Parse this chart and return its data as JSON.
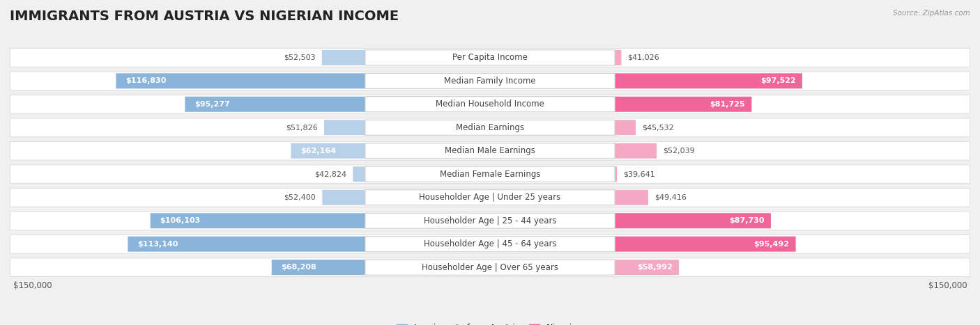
{
  "title": "IMMIGRANTS FROM AUSTRIA VS NIGERIAN INCOME",
  "source": "Source: ZipAtlas.com",
  "categories": [
    "Per Capita Income",
    "Median Family Income",
    "Median Household Income",
    "Median Earnings",
    "Median Male Earnings",
    "Median Female Earnings",
    "Householder Age | Under 25 years",
    "Householder Age | 25 - 44 years",
    "Householder Age | 45 - 64 years",
    "Householder Age | Over 65 years"
  ],
  "austria_values": [
    52503,
    116830,
    95277,
    51826,
    62164,
    42824,
    52400,
    106103,
    113140,
    68208
  ],
  "nigerian_values": [
    41026,
    97522,
    81725,
    45532,
    52039,
    39641,
    49416,
    87730,
    95492,
    58992
  ],
  "austria_color": "#8ab4d9",
  "austria_color_light": "#b8d0e8",
  "nigerian_color": "#f0669a",
  "nigerian_color_light": "#f5a8c4",
  "austria_label": "Immigrants from Austria",
  "nigerian_label": "Nigerian",
  "max_value": 150000,
  "background_color": "#f0f0f0",
  "row_bg_color": "#ffffff",
  "title_fontsize": 14,
  "label_fontsize": 8.5,
  "value_fontsize": 8.0,
  "axis_label_fontsize": 8.5
}
